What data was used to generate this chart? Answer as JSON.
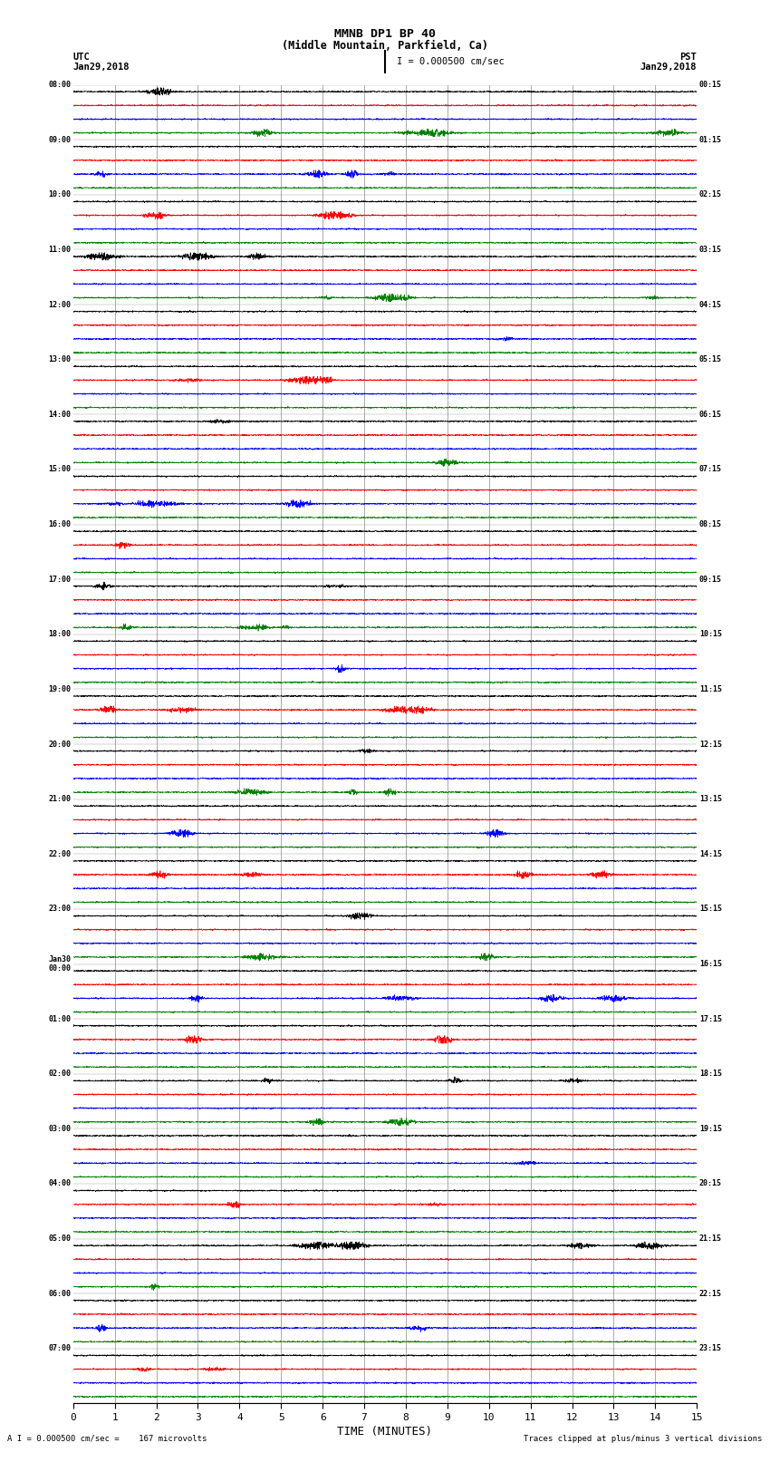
{
  "title_line1": "MMNB DP1 BP 40",
  "title_line2": "(Middle Mountain, Parkfield, Ca)",
  "label_left_top": "UTC",
  "label_left_date": "Jan29,2018",
  "label_right_top": "PST",
  "label_right_date": "Jan29,2018",
  "scale_label": "I = 0.000500 cm/sec",
  "bottom_label_left": "A I = 0.000500 cm/sec =    167 microvolts",
  "bottom_label_right": "Traces clipped at plus/minus 3 vertical divisions",
  "xlabel": "TIME (MINUTES)",
  "time_ticks": [
    0,
    1,
    2,
    3,
    4,
    5,
    6,
    7,
    8,
    9,
    10,
    11,
    12,
    13,
    14,
    15
  ],
  "utc_times": [
    "08:00",
    "09:00",
    "10:00",
    "11:00",
    "12:00",
    "13:00",
    "14:00",
    "15:00",
    "16:00",
    "17:00",
    "18:00",
    "19:00",
    "20:00",
    "21:00",
    "22:00",
    "23:00",
    "Jan30\n00:00",
    "01:00",
    "02:00",
    "03:00",
    "04:00",
    "05:00",
    "06:00",
    "07:00"
  ],
  "pst_times": [
    "00:15",
    "01:15",
    "02:15",
    "03:15",
    "04:15",
    "05:15",
    "06:15",
    "07:15",
    "08:15",
    "09:15",
    "10:15",
    "11:15",
    "12:15",
    "13:15",
    "14:15",
    "15:15",
    "16:15",
    "17:15",
    "18:15",
    "19:15",
    "20:15",
    "21:15",
    "22:15",
    "23:15"
  ],
  "n_rows": 24,
  "traces_per_row": 4,
  "colors": [
    "black",
    "red",
    "blue",
    "green"
  ],
  "bg_color": "white",
  "fig_width": 8.5,
  "fig_height": 16.13,
  "dpi": 100,
  "noise_scale": 0.03,
  "clip_val": 0.28,
  "n_samples": 3000
}
